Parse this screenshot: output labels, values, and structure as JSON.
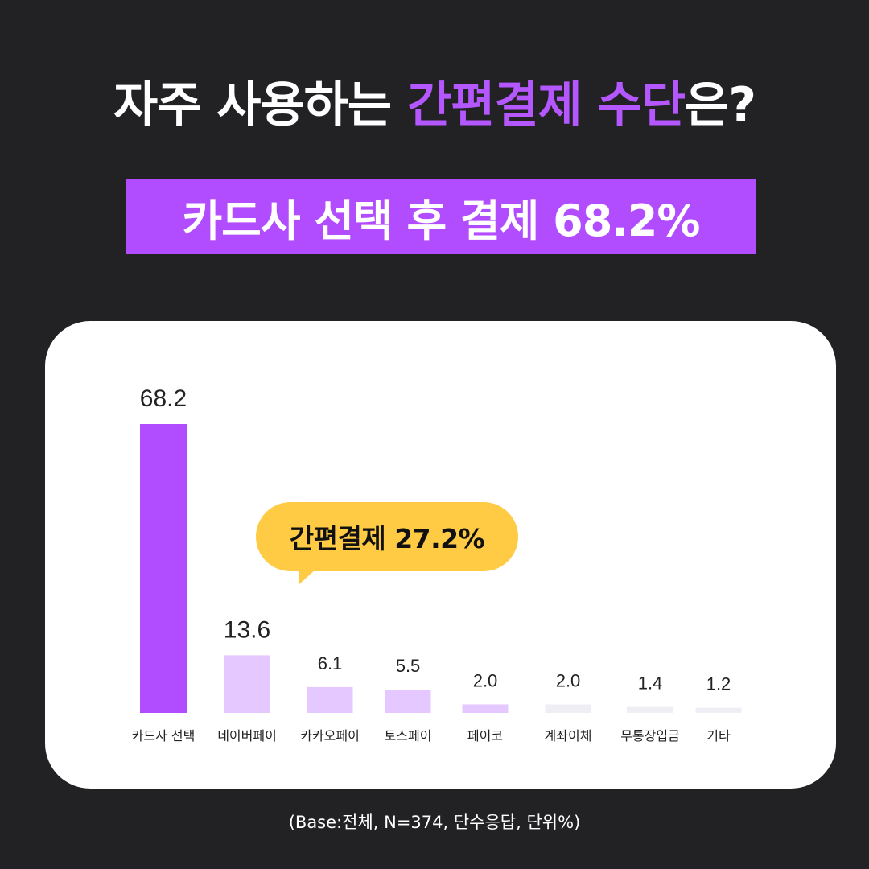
{
  "title": {
    "prefix": "자주 사용하는 ",
    "highlight": "간편결제 수단",
    "suffix": "은?"
  },
  "headline": "카드사 선택 후 결제 68.2%",
  "callout": "간편결제 27.2%",
  "footnote": "(Base:전체, N=374, 단수응답, 단위%)",
  "colors": {
    "primary": "#b14dff",
    "light": "#e5c8ff",
    "gray": "#f0eef5",
    "callout": "#ffcb45"
  },
  "chart_data": {
    "type": "bar",
    "categories": [
      "카드사 선택",
      "네이버페이",
      "카카오페이",
      "토스페이",
      "페이코",
      "계좌이체",
      "무통장입금",
      "기타"
    ],
    "values": [
      68.2,
      13.6,
      6.1,
      5.5,
      2.0,
      2.0,
      1.4,
      1.2
    ],
    "value_labels": [
      "68.2",
      "13.6",
      "6.1",
      "5.5",
      "2.0",
      "2.0",
      "1.4",
      "1.2"
    ],
    "bar_color_keys": [
      "primary",
      "light",
      "light",
      "light",
      "light",
      "gray",
      "gray",
      "gray"
    ],
    "title": "",
    "xlabel": "",
    "ylabel": "",
    "ylim": [
      0,
      68.2
    ],
    "grid": false
  }
}
